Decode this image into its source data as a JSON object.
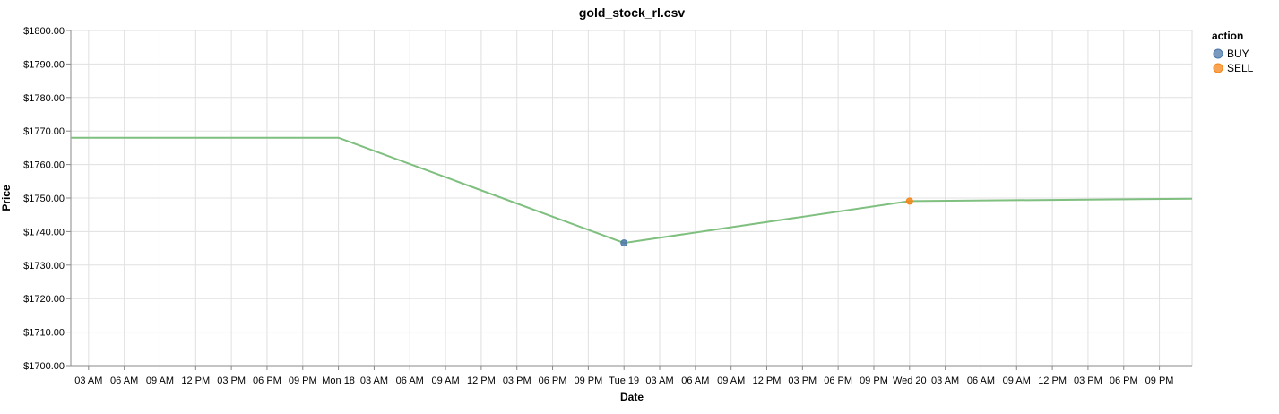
{
  "chart_data": {
    "type": "line",
    "title": "gold_stock_rl.csv",
    "xlabel": "Date",
    "ylabel": "Price",
    "ylim": [
      1700,
      1800
    ],
    "y_ticks": [
      "$1800.00",
      "$1790.00",
      "$1780.00",
      "$1770.00",
      "$1760.00",
      "$1750.00",
      "$1740.00",
      "$1730.00",
      "$1720.00",
      "$1710.00",
      "$1700.00"
    ],
    "x_ticks": [
      "03 AM",
      "06 AM",
      "09 AM",
      "12 PM",
      "03 PM",
      "06 PM",
      "09 PM",
      "Mon 18",
      "03 AM",
      "06 AM",
      "09 AM",
      "12 PM",
      "03 PM",
      "06 PM",
      "09 PM",
      "Tue 19",
      "03 AM",
      "06 AM",
      "09 AM",
      "12 PM",
      "03 PM",
      "06 PM",
      "09 PM",
      "Wed 20",
      "03 AM",
      "06 AM",
      "09 AM",
      "12 PM",
      "03 PM",
      "06 PM",
      "09 PM"
    ],
    "grid": true,
    "line_color": "#7fbf7f",
    "series": [
      {
        "x": [
          "Sun 17 00:00",
          "Mon 18 00:00",
          "Tue 19 00:00",
          "Wed 20 00:00",
          "Thu 21 00:00"
        ],
        "values": [
          1768.0,
          1768.0,
          1736.6,
          1749.1,
          1749.8
        ]
      }
    ],
    "points": [
      {
        "x": "Tue 19 00:00",
        "y": 1736.6,
        "action": "BUY"
      },
      {
        "x": "Wed 20 00:00",
        "y": 1749.1,
        "action": "SELL"
      }
    ],
    "legend": {
      "title": "action",
      "placement": "top-right",
      "items": [
        {
          "label": "BUY",
          "color": "#4c78a8"
        },
        {
          "label": "SELL",
          "color": "#f58518"
        }
      ]
    }
  }
}
